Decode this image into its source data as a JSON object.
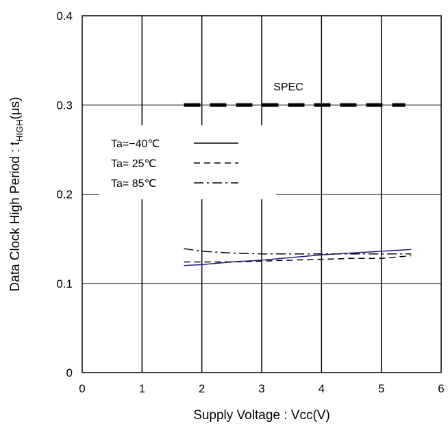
{
  "chart_data": {
    "type": "line",
    "title": "",
    "xlabel": "Supply Voltage : Vcc(V)",
    "ylabel_main": "Data Clock High Period : t",
    "ylabel_sub": "HIGH",
    "ylabel_unit": "(μs)",
    "xlim": [
      0,
      6
    ],
    "ylim": [
      0,
      0.4
    ],
    "xticks": [
      "0",
      "1",
      "2",
      "3",
      "4",
      "5",
      "6"
    ],
    "yticks": [
      "0",
      "0.1",
      "0.2",
      "0.3",
      "0.4"
    ],
    "xtick_values": [
      0,
      1,
      2,
      3,
      4,
      5,
      6
    ],
    "ytick_values": [
      0,
      0.1,
      0.2,
      0.3,
      0.4
    ],
    "grid": true,
    "legend_position": "upper-left",
    "spec": {
      "label": "SPEC",
      "value": 0.3,
      "x": [
        1.7,
        5.4
      ]
    },
    "series": [
      {
        "name": "Ta=−40℃",
        "style": "solid",
        "color": "#1a1a8c",
        "x": [
          1.7,
          2.0,
          2.5,
          3.0,
          3.5,
          4.0,
          4.5,
          5.0,
          5.5
        ],
        "y": [
          0.12,
          0.121,
          0.124,
          0.126,
          0.129,
          0.132,
          0.134,
          0.136,
          0.138
        ]
      },
      {
        "name": "Ta= 25℃",
        "style": "dashed",
        "color": "#000000",
        "x": [
          1.7,
          2.0,
          2.5,
          3.0,
          3.5,
          4.0,
          4.5,
          5.0,
          5.5
        ],
        "y": [
          0.124,
          0.124,
          0.124,
          0.125,
          0.126,
          0.127,
          0.128,
          0.128,
          0.131
        ]
      },
      {
        "name": "Ta= 85℃",
        "style": "dashdot",
        "color": "#000000",
        "x": [
          1.7,
          2.0,
          2.5,
          3.0,
          3.5,
          4.0,
          4.5,
          5.0,
          5.5
        ],
        "y": [
          0.139,
          0.136,
          0.134,
          0.133,
          0.133,
          0.133,
          0.133,
          0.133,
          0.133
        ]
      }
    ]
  }
}
